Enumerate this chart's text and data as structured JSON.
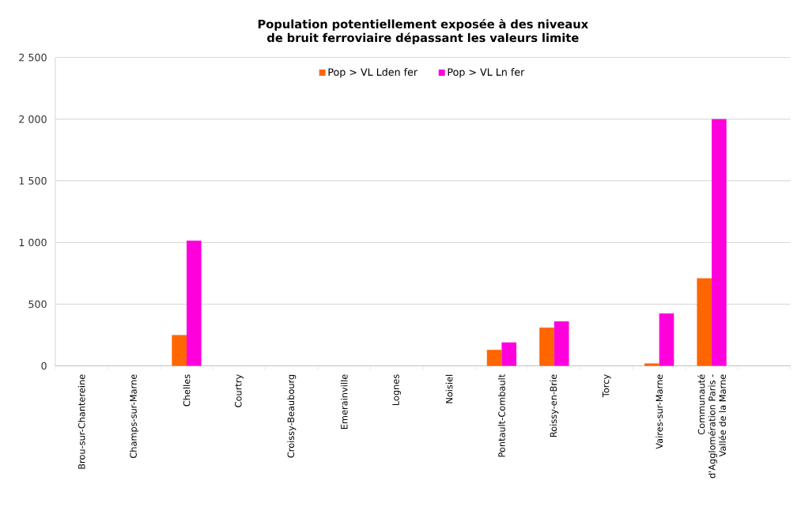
{
  "chart_data": {
    "type": "bar",
    "title": "Population potentiellement exposée à des niveaux de bruit ferroviaire dépassant les valeurs limite",
    "categories": [
      "Brou-sur-Chantereine",
      "Champs-sur-Marne",
      "Chelles",
      "Courtry",
      "Croissy-Beaubourg",
      "Emerainville",
      "Lognes",
      "Noisiel",
      "Pontault-Combault",
      "Roissy-en-Brie",
      "Torcy",
      "Vaires-sur-Marne",
      "Communauté d'Agglomération Paris - Vallée de la Marne",
      null
    ],
    "series": [
      {
        "name": "Pop > VL Lden fer",
        "color": "#ff6600",
        "values": [
          0,
          0,
          250,
          0,
          0,
          0,
          0,
          0,
          130,
          310,
          0,
          20,
          710,
          null
        ]
      },
      {
        "name": "Pop > VL Ln fer",
        "color": "#ff00dd",
        "values": [
          0,
          0,
          1015,
          0,
          0,
          0,
          0,
          0,
          190,
          360,
          0,
          425,
          2000,
          null
        ]
      }
    ],
    "ylim": [
      0,
      2500
    ],
    "yticks": [
      0,
      {
        "value": 500,
        "label": "500"
      },
      {
        "value": 1000,
        "label": "1 000"
      },
      {
        "value": 1500,
        "label": "1 500"
      },
      {
        "value": 2000,
        "label": "2 000"
      },
      {
        "value": 2500,
        "label": "2 500"
      }
    ],
    "grid": "y",
    "legend": "top"
  }
}
